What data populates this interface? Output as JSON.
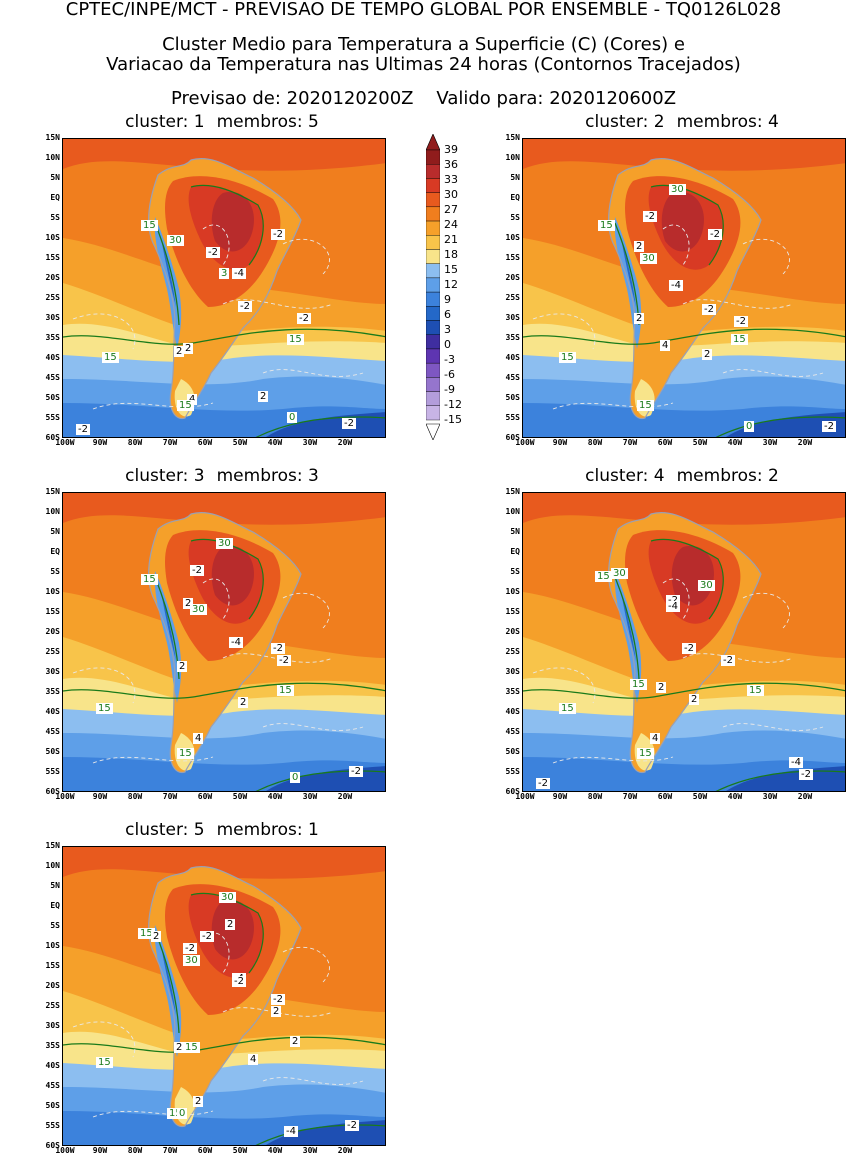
{
  "header": {
    "line1": "CPTEC/INPE/MCT - PREVISAO DE TEMPO GLOBAL POR ENSEMBLE - TQ0126L028",
    "line2": "Cluster Medio para Temperatura a Superficie (C) (Cores) e",
    "line3": "Variacao da Temperatura nas Ultimas 24 horas (Contornos Tracejados)",
    "previsao_label": "Previsao de: 2020120200Z",
    "valido_label": "Valido para: 2020120600Z"
  },
  "colors": {
    "scale": [
      "#c8b4e6",
      "#b39ddb",
      "#9575cd",
      "#7e57c2",
      "#5e35b1",
      "#3f2ea0",
      "#1e4fb3",
      "#2468c8",
      "#3c82dc",
      "#5e9fe8",
      "#8cbef0",
      "#f8e48a",
      "#f8c44a",
      "#f5a02a",
      "#f07e1e",
      "#e85a1e",
      "#d83a24",
      "#b82c2c",
      "#901c1c"
    ],
    "land_outline": "#9aa0b4",
    "contour_15": "#1a7a1a",
    "dashed": "#e8e8e8"
  },
  "colorbar": {
    "ticks": [
      "39",
      "36",
      "33",
      "30",
      "27",
      "24",
      "21",
      "18",
      "15",
      "12",
      "9",
      "6",
      "3",
      "0",
      "-3",
      "-6",
      "-9",
      "-12",
      "-15"
    ]
  },
  "axes": {
    "lat_labels": [
      "15N",
      "10N",
      "5N",
      "EQ",
      "5S",
      "10S",
      "15S",
      "20S",
      "25S",
      "30S",
      "35S",
      "40S",
      "45S",
      "50S",
      "55S",
      "60S"
    ],
    "lon_labels": [
      "100W",
      "90W",
      "80W",
      "70W",
      "60W",
      "50W",
      "40W",
      "30W",
      "20W"
    ]
  },
  "panels": [
    {
      "cluster_label": "cluster: 1",
      "membros_label": "membros: 5",
      "labels": [
        {
          "text": "15",
          "type": "g"
        },
        {
          "text": "30",
          "type": "g"
        },
        {
          "text": "-2",
          "type": "k"
        },
        {
          "text": "-2",
          "type": "k"
        },
        {
          "text": "3",
          "type": "g"
        },
        {
          "text": "-4",
          "type": "k"
        },
        {
          "text": "-2",
          "type": "k"
        },
        {
          "text": "-2",
          "type": "k"
        },
        {
          "text": "15",
          "type": "g"
        },
        {
          "text": "2",
          "type": "k"
        },
        {
          "text": "2",
          "type": "k"
        },
        {
          "text": "15",
          "type": "g"
        },
        {
          "text": "4",
          "type": "k"
        },
        {
          "text": "15",
          "type": "g"
        },
        {
          "text": "2",
          "type": "k"
        },
        {
          "text": "0",
          "type": "g"
        },
        {
          "text": "-2",
          "type": "k"
        },
        {
          "text": "-2",
          "type": "k"
        }
      ]
    },
    {
      "cluster_label": "cluster: 2",
      "membros_label": "membros: 4",
      "labels": [
        {
          "text": "30",
          "type": "g"
        },
        {
          "text": "-2",
          "type": "k"
        },
        {
          "text": "15",
          "type": "g"
        },
        {
          "text": "-2",
          "type": "k"
        },
        {
          "text": "2",
          "type": "k"
        },
        {
          "text": "30",
          "type": "g"
        },
        {
          "text": "-4",
          "type": "k"
        },
        {
          "text": "-2",
          "type": "k"
        },
        {
          "text": "2",
          "type": "k"
        },
        {
          "text": "-2",
          "type": "k"
        },
        {
          "text": "15",
          "type": "g"
        },
        {
          "text": "4",
          "type": "k"
        },
        {
          "text": "2",
          "type": "k"
        },
        {
          "text": "15",
          "type": "g"
        },
        {
          "text": "15",
          "type": "g"
        },
        {
          "text": "0",
          "type": "g"
        },
        {
          "text": "-2",
          "type": "k"
        }
      ]
    },
    {
      "cluster_label": "cluster: 3",
      "membros_label": "membros: 3",
      "labels": [
        {
          "text": "30",
          "type": "g"
        },
        {
          "text": "-2",
          "type": "k"
        },
        {
          "text": "15",
          "type": "g"
        },
        {
          "text": "2",
          "type": "k"
        },
        {
          "text": "30",
          "type": "g"
        },
        {
          "text": "-4",
          "type": "k"
        },
        {
          "text": "-2",
          "type": "k"
        },
        {
          "text": "-2",
          "type": "k"
        },
        {
          "text": "2",
          "type": "k"
        },
        {
          "text": "15",
          "type": "g"
        },
        {
          "text": "15",
          "type": "g"
        },
        {
          "text": "2",
          "type": "k"
        },
        {
          "text": "4",
          "type": "k"
        },
        {
          "text": "15",
          "type": "g"
        },
        {
          "text": "0",
          "type": "g"
        },
        {
          "text": "-2",
          "type": "k"
        }
      ]
    },
    {
      "cluster_label": "cluster: 4",
      "membros_label": "membros: 2",
      "labels": [
        {
          "text": "15",
          "type": "g"
        },
        {
          "text": "30",
          "type": "g"
        },
        {
          "text": "-2",
          "type": "k"
        },
        {
          "text": "-4",
          "type": "k"
        },
        {
          "text": "30",
          "type": "g"
        },
        {
          "text": "-2",
          "type": "k"
        },
        {
          "text": "-2",
          "type": "k"
        },
        {
          "text": "15",
          "type": "g"
        },
        {
          "text": "2",
          "type": "k"
        },
        {
          "text": "15",
          "type": "g"
        },
        {
          "text": "15",
          "type": "g"
        },
        {
          "text": "2",
          "type": "k"
        },
        {
          "text": "4",
          "type": "k"
        },
        {
          "text": "15",
          "type": "g"
        },
        {
          "text": "-2",
          "type": "k"
        },
        {
          "text": "-4",
          "type": "k"
        },
        {
          "text": "-2",
          "type": "k"
        }
      ]
    },
    {
      "cluster_label": "cluster: 5",
      "membros_label": "membros: 1",
      "labels": [
        {
          "text": "30",
          "type": "g"
        },
        {
          "text": "15",
          "type": "g"
        },
        {
          "text": "2",
          "type": "k"
        },
        {
          "text": "-2",
          "type": "k"
        },
        {
          "text": "2",
          "type": "k"
        },
        {
          "text": "-2",
          "type": "k"
        },
        {
          "text": "30",
          "type": "g"
        },
        {
          "text": "-4",
          "type": "k"
        },
        {
          "text": "-2",
          "type": "k"
        },
        {
          "text": "-2",
          "type": "k"
        },
        {
          "text": "2",
          "type": "k"
        },
        {
          "text": "2",
          "type": "k"
        },
        {
          "text": "15",
          "type": "g"
        },
        {
          "text": "2",
          "type": "k"
        },
        {
          "text": "15",
          "type": "g"
        },
        {
          "text": "4",
          "type": "k"
        },
        {
          "text": "2",
          "type": "k"
        },
        {
          "text": "15",
          "type": "g"
        },
        {
          "text": "0",
          "type": "g"
        },
        {
          "text": "-4",
          "type": "k"
        },
        {
          "text": "-2",
          "type": "k"
        }
      ]
    }
  ]
}
